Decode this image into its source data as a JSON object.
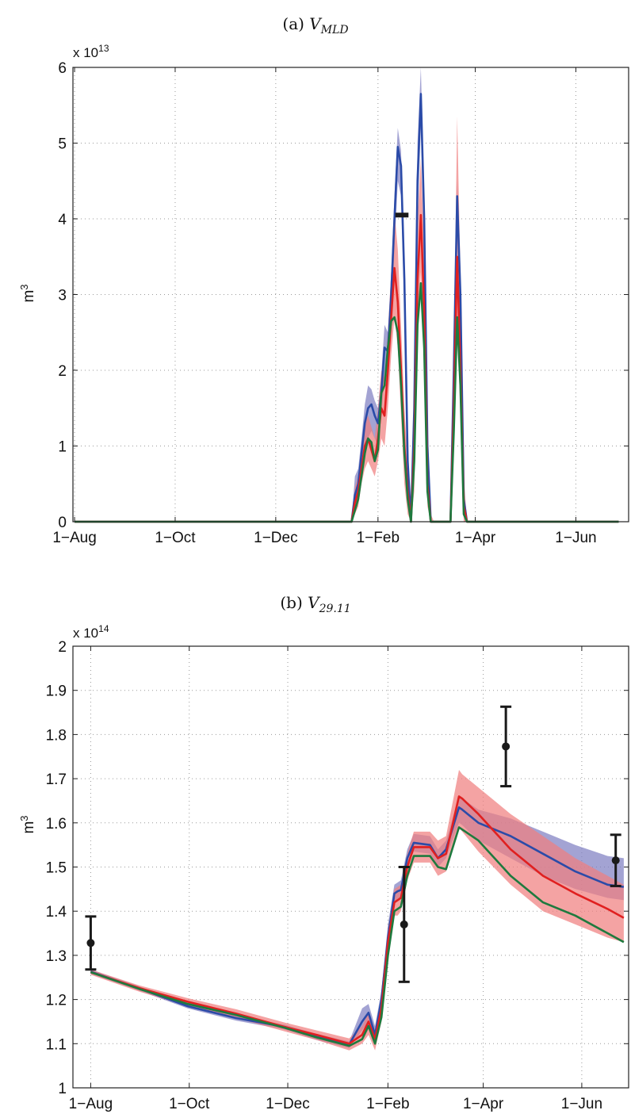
{
  "chart_data": [
    {
      "type": "area",
      "title_prefix": "(a) ",
      "title_var": "V",
      "title_sub": "MLD",
      "ylabel": "m",
      "ylabel_exp": "3",
      "y_exponent_label": "x 10",
      "y_exponent_power": "13",
      "x_ticks": [
        {
          "label": "1−Aug",
          "day": 0
        },
        {
          "label": "1−Oct",
          "day": 61
        },
        {
          "label": "1−Dec",
          "day": 122
        },
        {
          "label": "1−Feb",
          "day": 184
        },
        {
          "label": "1−Apr",
          "day": 243
        },
        {
          "label": "1−Jun",
          "day": 304
        }
      ],
      "xlim": [
        -1,
        336
      ],
      "y_ticks": [
        0,
        1,
        2,
        3,
        4,
        5,
        6
      ],
      "ylim": [
        0,
        6
      ],
      "x_days": [
        0,
        30,
        160,
        168,
        170,
        172,
        174,
        176,
        178,
        180,
        182,
        184,
        186,
        188,
        190,
        192,
        194,
        196,
        198,
        200,
        202,
        204,
        206,
        208,
        210,
        212,
        214,
        216,
        218,
        220,
        222,
        224,
        226,
        228,
        230,
        232,
        234,
        236,
        238,
        240,
        242,
        244,
        250,
        300,
        330
      ],
      "series": [
        {
          "name": "",
          "color": "#2b4ba8",
          "band_color": "#8080c2",
          "line": [
            0,
            0,
            0,
            0,
            0.35,
            0.5,
            0.9,
            1.3,
            1.5,
            1.55,
            1.4,
            1.3,
            1.7,
            2.3,
            2.25,
            3.0,
            4.0,
            4.95,
            4.7,
            3.2,
            0.8,
            0.0,
            1.5,
            4.5,
            5.65,
            4.0,
            1.0,
            0.0,
            0.0,
            0.0,
            0.0,
            0.0,
            0.0,
            0.0,
            2.0,
            4.3,
            3.0,
            0.3,
            0.0,
            0.0,
            0.0,
            0.0,
            0.0,
            0.0,
            0.0
          ],
          "band_low": [
            0,
            0,
            0,
            0,
            0.2,
            0.3,
            0.7,
            1.0,
            1.1,
            1.2,
            1.1,
            1.0,
            1.4,
            1.9,
            1.8,
            2.6,
            3.6,
            4.5,
            4.3,
            2.8,
            0.5,
            0.0,
            1.2,
            4.0,
            5.2,
            3.6,
            0.7,
            0.0,
            0.0,
            0.0,
            0.0,
            0.0,
            0.0,
            0.0,
            1.6,
            3.9,
            2.6,
            0.1,
            0.0,
            0.0,
            0.0,
            0.0,
            0.0,
            0.0,
            0.0
          ],
          "band_high": [
            0,
            0,
            0,
            0,
            0.6,
            0.7,
            1.1,
            1.55,
            1.8,
            1.75,
            1.6,
            1.5,
            1.95,
            2.6,
            2.5,
            3.3,
            4.3,
            5.2,
            4.9,
            3.4,
            1.0,
            0.0,
            1.8,
            5.0,
            6.0,
            4.3,
            1.2,
            0.0,
            0.0,
            0.0,
            0.0,
            0.0,
            0.0,
            0.0,
            2.3,
            4.5,
            3.3,
            0.4,
            0.0,
            0.0,
            0.0,
            0.0,
            0.0,
            0.0,
            0.0
          ]
        },
        {
          "name": "",
          "color": "#e02020",
          "band_color": "#f08080",
          "line": [
            0,
            0,
            0,
            0,
            0.25,
            0.4,
            0.7,
            1.0,
            1.1,
            0.95,
            0.8,
            1.1,
            1.5,
            1.4,
            2.0,
            2.7,
            3.35,
            2.9,
            2.0,
            1.0,
            0.4,
            0.0,
            1.0,
            3.2,
            4.05,
            2.8,
            0.5,
            0.0,
            0.0,
            0.0,
            0.0,
            0.0,
            0.0,
            0.0,
            1.5,
            3.5,
            2.0,
            0.2,
            0.0,
            0.0,
            0.0,
            0.0,
            0.0,
            0.0,
            0.0
          ],
          "band_low": [
            0,
            0,
            0,
            0,
            0.1,
            0.2,
            0.5,
            0.7,
            0.8,
            0.7,
            0.6,
            0.8,
            1.1,
            1.0,
            1.5,
            2.2,
            2.7,
            2.3,
            1.4,
            0.5,
            0.1,
            0.0,
            0.4,
            2.4,
            3.3,
            2.0,
            0.2,
            0.0,
            0.0,
            0.0,
            0.0,
            0.0,
            0.0,
            0.0,
            0.9,
            2.7,
            1.4,
            0.0,
            0.0,
            0.0,
            0.0,
            0.0,
            0.0,
            0.0,
            0.0
          ],
          "band_high": [
            0,
            0,
            0,
            0,
            0.45,
            0.6,
            0.95,
            1.3,
            1.4,
            1.25,
            1.1,
            1.5,
            2.0,
            1.9,
            2.5,
            3.3,
            4.1,
            3.6,
            2.6,
            1.5,
            0.8,
            0.2,
            1.6,
            4.0,
            4.8,
            3.6,
            0.9,
            0.1,
            0.0,
            0.0,
            0.0,
            0.0,
            0.0,
            0.0,
            2.2,
            5.35,
            3.3,
            0.6,
            0.0,
            0.0,
            0.0,
            0.0,
            0.0,
            0.0,
            0.0
          ]
        },
        {
          "name": "",
          "color": "#1e7a3e",
          "band_color": "",
          "line": [
            0,
            0,
            0,
            0,
            0.15,
            0.3,
            0.6,
            0.9,
            1.1,
            1.05,
            0.8,
            0.95,
            1.7,
            1.8,
            2.3,
            2.65,
            2.7,
            2.5,
            1.8,
            0.9,
            0.3,
            0.0,
            0.8,
            2.6,
            3.15,
            2.3,
            0.4,
            0.0,
            0.0,
            0.0,
            0.0,
            0.0,
            0.0,
            0.0,
            1.2,
            2.7,
            1.8,
            0.1,
            0.0,
            0.0,
            0.0,
            0.0,
            0.0,
            0.0,
            0.0
          ]
        }
      ],
      "observations": [
        {
          "x": 198.5,
          "y": 4.05,
          "xerr": 4,
          "yerr": 0
        }
      ]
    },
    {
      "type": "area",
      "title_prefix": "(b) ",
      "title_var": "V",
      "title_sub": "29.11",
      "ylabel": "m",
      "ylabel_exp": "3",
      "y_exponent_label": "x 10",
      "y_exponent_power": "14",
      "x_ticks": [
        {
          "label": "1−Aug",
          "day": 0
        },
        {
          "label": "1−Oct",
          "day": 61
        },
        {
          "label": "1−Dec",
          "day": 122
        },
        {
          "label": "1−Feb",
          "day": 184
        },
        {
          "label": "1−Apr",
          "day": 243
        },
        {
          "label": "1−Jun",
          "day": 304
        }
      ],
      "xlim": [
        -11,
        333
      ],
      "y_ticks": [
        1,
        1.1,
        1.2,
        1.3,
        1.4,
        1.5,
        1.6,
        1.7,
        1.8,
        1.9,
        2
      ],
      "ylim": [
        1,
        2
      ],
      "x_days": [
        0,
        30,
        60,
        90,
        120,
        140,
        160,
        168,
        172,
        176,
        180,
        184,
        188,
        190,
        192,
        196,
        200,
        210,
        215,
        220,
        228,
        230,
        240,
        260,
        280,
        300,
        320,
        330
      ],
      "series": [
        {
          "name": "",
          "color": "#2b4ba8",
          "band_color": "#8080c2",
          "line": [
            1.263,
            1.225,
            1.185,
            1.158,
            1.138,
            1.115,
            1.098,
            1.15,
            1.17,
            1.12,
            1.2,
            1.34,
            1.44,
            1.445,
            1.448,
            1.52,
            1.555,
            1.55,
            1.52,
            1.54,
            1.635,
            1.63,
            1.6,
            1.57,
            1.53,
            1.49,
            1.46,
            1.455
          ],
          "band_low": [
            1.258,
            1.22,
            1.18,
            1.152,
            1.132,
            1.108,
            1.09,
            1.13,
            1.15,
            1.1,
            1.18,
            1.31,
            1.42,
            1.425,
            1.43,
            1.5,
            1.535,
            1.53,
            1.5,
            1.52,
            1.6,
            1.595,
            1.56,
            1.52,
            1.48,
            1.45,
            1.43,
            1.425
          ],
          "band_high": [
            1.268,
            1.23,
            1.19,
            1.163,
            1.143,
            1.122,
            1.105,
            1.18,
            1.19,
            1.14,
            1.22,
            1.37,
            1.46,
            1.465,
            1.47,
            1.54,
            1.575,
            1.57,
            1.54,
            1.56,
            1.66,
            1.655,
            1.63,
            1.61,
            1.58,
            1.55,
            1.525,
            1.52
          ]
        },
        {
          "name": "",
          "color": "#e02020",
          "band_color": "#f08080",
          "line": [
            1.262,
            1.226,
            1.195,
            1.168,
            1.138,
            1.12,
            1.1,
            1.12,
            1.15,
            1.11,
            1.18,
            1.33,
            1.42,
            1.425,
            1.43,
            1.5,
            1.545,
            1.545,
            1.52,
            1.53,
            1.66,
            1.655,
            1.62,
            1.54,
            1.48,
            1.44,
            1.405,
            1.385
          ],
          "band_low": [
            1.256,
            1.218,
            1.185,
            1.158,
            1.128,
            1.108,
            1.085,
            1.1,
            1.12,
            1.085,
            1.15,
            1.29,
            1.39,
            1.39,
            1.4,
            1.47,
            1.51,
            1.51,
            1.48,
            1.49,
            1.59,
            1.58,
            1.535,
            1.46,
            1.4,
            1.37,
            1.34,
            1.33
          ],
          "band_high": [
            1.268,
            1.232,
            1.203,
            1.178,
            1.148,
            1.13,
            1.112,
            1.14,
            1.17,
            1.13,
            1.21,
            1.36,
            1.45,
            1.455,
            1.46,
            1.53,
            1.58,
            1.58,
            1.56,
            1.57,
            1.72,
            1.71,
            1.68,
            1.62,
            1.57,
            1.52,
            1.48,
            1.46
          ]
        },
        {
          "name": "",
          "color": "#1e7a3e",
          "band_color": "",
          "line": [
            1.262,
            1.224,
            1.19,
            1.165,
            1.136,
            1.114,
            1.095,
            1.11,
            1.14,
            1.1,
            1.16,
            1.3,
            1.4,
            1.405,
            1.41,
            1.48,
            1.525,
            1.525,
            1.5,
            1.495,
            1.59,
            1.585,
            1.56,
            1.48,
            1.42,
            1.39,
            1.35,
            1.33
          ]
        }
      ],
      "observations": [
        {
          "x": 0,
          "y": 1.328,
          "yerr": 0.06
        },
        {
          "x": 194,
          "y": 1.37,
          "yerr": 0.13
        },
        {
          "x": 257,
          "y": 1.773,
          "yerr": 0.09
        },
        {
          "x": 325,
          "y": 1.515,
          "yerr": 0.058
        }
      ]
    }
  ]
}
